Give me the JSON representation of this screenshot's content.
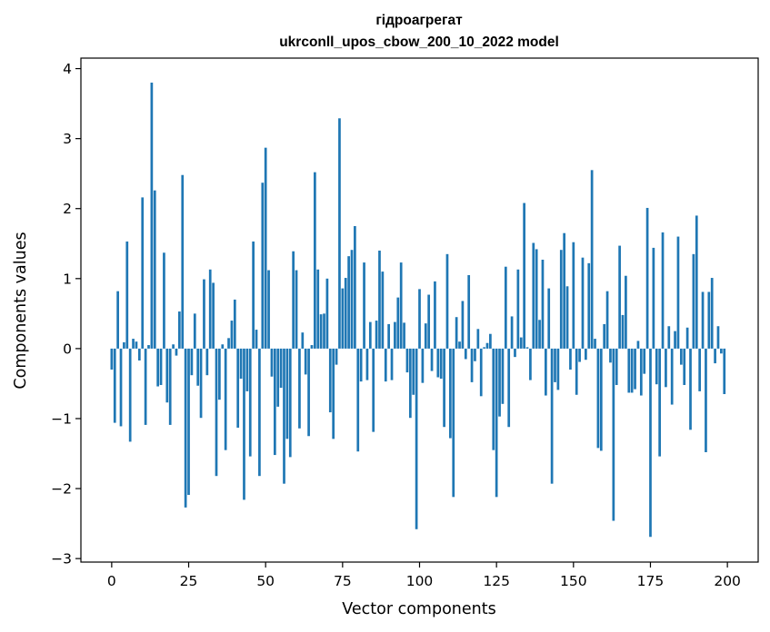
{
  "chart_data": {
    "type": "bar",
    "title": "гідроагрегат",
    "subtitle": "ukrconll_upos_cbow_200_10_2022 model",
    "xlabel": "Vector components",
    "ylabel": "Components values",
    "xlim": [
      -10,
      210
    ],
    "ylim": [
      -3,
      4
    ],
    "grid": false,
    "color": "#1f77b4",
    "xticks": [
      0,
      25,
      50,
      75,
      100,
      125,
      150,
      175,
      200
    ],
    "yticks": [
      -3,
      -2,
      -1,
      0,
      1,
      2,
      3,
      4
    ],
    "xtick_labels": [
      "0",
      "25",
      "50",
      "75",
      "100",
      "125",
      "150",
      "175",
      "200"
    ],
    "ytick_labels": [
      "−3",
      "−2",
      "−1",
      "0",
      "1",
      "2",
      "3",
      "4"
    ],
    "values": [
      -0.3,
      -1.06,
      0.82,
      -1.11,
      0.09,
      1.53,
      -1.33,
      0.14,
      0.1,
      -0.17,
      2.16,
      -1.09,
      0.05,
      3.8,
      2.26,
      -0.54,
      -0.52,
      1.37,
      -0.77,
      -1.09,
      0.06,
      -0.1,
      0.53,
      2.48,
      -2.27,
      -2.09,
      -0.38,
      0.5,
      -0.53,
      -0.99,
      0.99,
      -0.38,
      1.13,
      0.94,
      -1.82,
      -0.73,
      0.06,
      -1.45,
      0.15,
      0.4,
      0.7,
      -1.13,
      -0.43,
      -2.16,
      -0.61,
      -1.54,
      1.53,
      0.27,
      -1.82,
      2.37,
      2.87,
      1.12,
      -0.4,
      -1.52,
      -0.83,
      -0.56,
      -1.93,
      -1.29,
      -1.55,
      1.39,
      1.12,
      -1.14,
      0.23,
      -0.37,
      -1.25,
      0.05,
      2.52,
      1.13,
      0.49,
      0.5,
      1.0,
      -0.91,
      -1.29,
      -0.23,
      3.29,
      0.86,
      1.01,
      1.32,
      1.41,
      1.75,
      -1.47,
      -0.47,
      1.23,
      -0.45,
      0.38,
      -1.19,
      0.4,
      1.4,
      1.1,
      -0.47,
      0.35,
      -0.45,
      0.38,
      0.73,
      1.23,
      0.37,
      -0.34,
      -0.99,
      -0.66,
      -2.58,
      0.85,
      -0.49,
      0.36,
      0.77,
      -0.32,
      0.96,
      -0.41,
      -0.43,
      -1.12,
      1.35,
      -1.28,
      -2.12,
      0.45,
      0.1,
      0.68,
      -0.15,
      1.05,
      -0.48,
      -0.18,
      0.28,
      -0.68,
      0.02,
      0.08,
      0.21,
      -1.45,
      -2.12,
      -0.97,
      -0.79,
      1.17,
      -1.12,
      0.46,
      -0.12,
      1.13,
      0.16,
      2.08,
      0.02,
      -0.45,
      1.51,
      1.42,
      0.41,
      1.27,
      -0.67,
      0.86,
      -1.93,
      -0.48,
      -0.59,
      1.41,
      1.65,
      0.89,
      -0.3,
      1.52,
      -0.66,
      -0.19,
      1.3,
      -0.16,
      1.22,
      2.55,
      0.14,
      -1.42,
      -1.46,
      0.35,
      0.82,
      -0.2,
      -2.46,
      -0.52,
      1.47,
      0.48,
      1.04,
      -0.63,
      -0.63,
      -0.58,
      0.11,
      -0.67,
      -0.36,
      2.01,
      -2.69,
      1.44,
      -0.51,
      -1.54,
      1.66,
      -0.55,
      0.32,
      -0.8,
      0.25,
      1.6,
      -0.23,
      -0.52,
      0.3,
      -1.16,
      1.35,
      1.9,
      -0.61,
      0.81,
      -1.48,
      0.81,
      1.01,
      -0.21,
      0.32,
      -0.07,
      -0.65
    ]
  }
}
